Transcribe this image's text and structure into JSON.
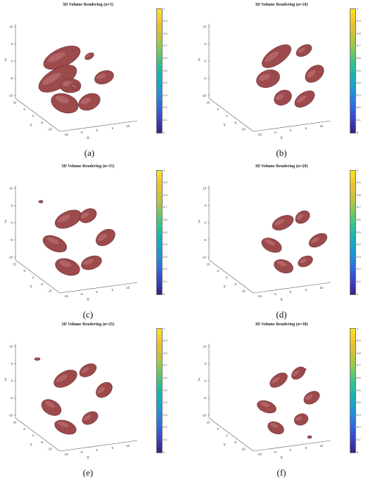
{
  "chart_data": [
    {
      "type": "3d-isosurface",
      "title": "3D Volume Rendering (n=5)",
      "caption": "(a)",
      "z_ticks": [
        "10",
        "5",
        "0",
        "-5",
        "-10"
      ],
      "x_ticks": [
        "-10",
        "-5",
        "0",
        "5",
        "10"
      ],
      "y_ticks": [
        "10",
        "5",
        "0",
        "-5",
        "-10"
      ],
      "zlabel": "Z",
      "xlabel": "X",
      "ylabel": "Y",
      "colorbar_ticks": [
        "0",
        "0.1",
        "0.2",
        "0.3",
        "0.4",
        "0.5",
        "0.6",
        "0.7",
        "0.8",
        "0.9",
        "1"
      ],
      "colorbar_range": [
        0,
        1
      ],
      "blob_color": "#9c4a4c"
    },
    {
      "type": "3d-isosurface",
      "title": "3D Volume Rendering (n=10)",
      "caption": "(b)",
      "z_ticks": [
        "10",
        "5",
        "0",
        "-5",
        "-10"
      ],
      "x_ticks": [
        "-10",
        "-5",
        "0",
        "5",
        "10"
      ],
      "y_ticks": [
        "10",
        "5",
        "0",
        "-5",
        "-10"
      ],
      "zlabel": "Z",
      "xlabel": "X",
      "ylabel": "Y",
      "colorbar_ticks": [
        "0",
        "0.1",
        "0.2",
        "0.3",
        "0.4",
        "0.5",
        "0.6",
        "0.7",
        "0.8",
        "0.9",
        "1"
      ],
      "colorbar_range": [
        0,
        1
      ],
      "blob_color": "#9c4a4c"
    },
    {
      "type": "3d-isosurface",
      "title": "3D Volume Rendering (n=15)",
      "caption": "(c)",
      "z_ticks": [
        "10",
        "5",
        "0",
        "-5",
        "-10"
      ],
      "x_ticks": [
        "-10",
        "-5",
        "0",
        "5",
        "10"
      ],
      "y_ticks": [
        "10",
        "5",
        "0",
        "-5",
        "-10"
      ],
      "zlabel": "Z",
      "xlabel": "X",
      "ylabel": "Y",
      "colorbar_ticks": [
        "0",
        "0.1",
        "0.2",
        "0.3",
        "0.4",
        "0.5",
        "0.6",
        "0.7",
        "0.8",
        "0.9",
        "1"
      ],
      "colorbar_range": [
        0,
        1
      ],
      "blob_color": "#9c4a4c"
    },
    {
      "type": "3d-isosurface",
      "title": "3D Volume Rendering (n=20)",
      "caption": "(d)",
      "z_ticks": [
        "10",
        "5",
        "0",
        "-5",
        "-10"
      ],
      "x_ticks": [
        "-10",
        "-5",
        "0",
        "5",
        "10"
      ],
      "y_ticks": [
        "10",
        "5",
        "0",
        "-5",
        "-10"
      ],
      "zlabel": "Z",
      "xlabel": "X",
      "ylabel": "Y",
      "colorbar_ticks": [
        "0",
        "0.1",
        "0.2",
        "0.3",
        "0.4",
        "0.5",
        "0.6",
        "0.7",
        "0.8",
        "0.9",
        "1"
      ],
      "colorbar_range": [
        0,
        1
      ],
      "blob_color": "#9c4a4c"
    },
    {
      "type": "3d-isosurface",
      "title": "3D Volume Rendering (n=25)",
      "caption": "(e)",
      "z_ticks": [
        "10",
        "5",
        "0",
        "-5",
        "-10"
      ],
      "x_ticks": [
        "-10",
        "-5",
        "0",
        "5",
        "10"
      ],
      "y_ticks": [
        "10",
        "5",
        "0",
        "-5",
        "-10"
      ],
      "zlabel": "Z",
      "xlabel": "X",
      "ylabel": "Y",
      "colorbar_ticks": [
        "0",
        "0.1",
        "0.2",
        "0.3",
        "0.4",
        "0.5",
        "0.6",
        "0.7",
        "0.8",
        "0.9",
        "1"
      ],
      "colorbar_range": [
        0,
        1
      ],
      "blob_color": "#9c4a4c"
    },
    {
      "type": "3d-isosurface",
      "title": "3D Volume Rendering (n=30)",
      "caption": "(f)",
      "z_ticks": [
        "10",
        "5",
        "0",
        "-5",
        "-10"
      ],
      "x_ticks": [
        "-10",
        "-5",
        "0",
        "5",
        "10"
      ],
      "y_ticks": [
        "10",
        "5",
        "0",
        "-5",
        "-10"
      ],
      "zlabel": "Z",
      "xlabel": "X",
      "ylabel": "Y",
      "colorbar_ticks": [
        "0",
        "0.1",
        "0.2",
        "0.3",
        "0.4",
        "0.5",
        "0.6",
        "0.7",
        "0.8",
        "0.9",
        "1"
      ],
      "colorbar_range": [
        0,
        1
      ],
      "blob_color": "#9c4a4c"
    }
  ],
  "colormap": [
    "#3b1f86",
    "#3a43c6",
    "#2f6ee0",
    "#1e95d6",
    "#13b2b9",
    "#2fc291",
    "#7bc85e",
    "#c2c33a",
    "#f0c02e",
    "#f8e61c"
  ]
}
